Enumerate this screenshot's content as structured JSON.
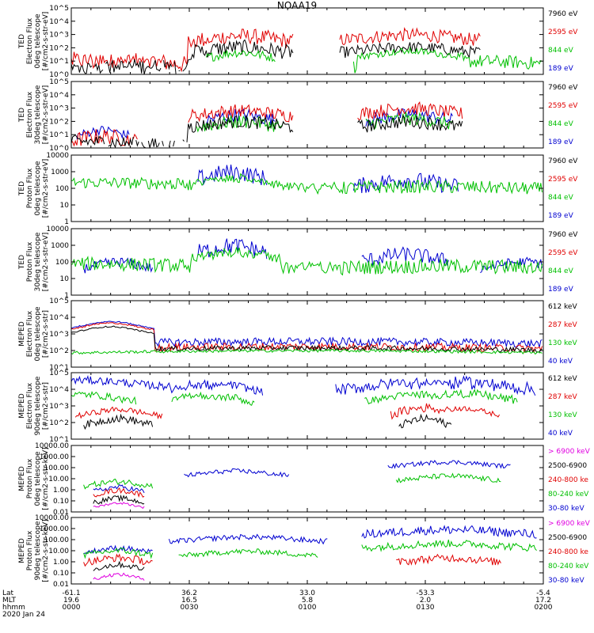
{
  "title": "NOAA19",
  "chart_data": {
    "type": "line",
    "title": "NOAA19",
    "x_axis": {
      "row_labels": [
        "Lat",
        "MLT",
        "hhmm",
        "2020 Jan 24"
      ],
      "ticks": [
        {
          "lat": "-61.1",
          "mlt": "19.6",
          "hhmm": "0000"
        },
        {
          "lat": "36.2",
          "mlt": "16.5",
          "hhmm": "0030"
        },
        {
          "lat": "33.0",
          "mlt": "5.8",
          "hhmm": "0100"
        },
        {
          "lat": "-53.3",
          "mlt": "2.0",
          "hhmm": "0130"
        },
        {
          "lat": "-5.4",
          "mlt": "17.2",
          "hhmm": "0200"
        }
      ],
      "range_minutes": [
        0,
        120
      ]
    },
    "panels": [
      {
        "ylabel": [
          "TED",
          "Electron Flux",
          "0deg telescope",
          "[#/cm2-s-str-eV]"
        ],
        "yscale": "log",
        "ylim": [
          1,
          100000
        ],
        "ytick_labels": [
          "10^0",
          "10^1",
          "10^2",
          "10^3",
          "10^4",
          "10^5"
        ],
        "legend": [
          {
            "label": "7960 eV",
            "color": "#000000"
          },
          {
            "label": "2595 eV",
            "color": "#e00000"
          },
          {
            "label": "844 eV",
            "color": "#00c000"
          },
          {
            "label": "189 eV",
            "color": "#0000d0"
          }
        ],
        "series": [
          {
            "color": "#e00000",
            "profile": [
              [
                0,
                10,
                2,
                50
              ],
              [
                18,
                8,
                2,
                40
              ],
              [
                43,
                6,
                200,
                3000
              ],
              [
                86,
                8,
                300,
                3000
              ]
            ]
          },
          {
            "color": "#000000",
            "profile": [
              [
                0,
                10,
                1,
                10
              ],
              [
                18,
                8,
                1,
                15
              ],
              [
                43,
                6,
                30,
                400
              ],
              [
                86,
                8,
                40,
                300
              ]
            ]
          },
          {
            "color": "#00c000",
            "profile": [
              [
                43,
                4,
                20,
                100
              ],
              [
                86,
                6,
                30,
                100
              ],
              [
                103,
                14,
                3,
                30
              ]
            ]
          }
        ]
      },
      {
        "ylabel": [
          "TED",
          "Electron Flux",
          "30deg telescope",
          "[#/cm2-s-str-eV]"
        ],
        "yscale": "log",
        "ylim": [
          1,
          100000
        ],
        "ytick_labels": [
          "10^0",
          "10^1",
          "10^2",
          "10^3",
          "10^4",
          "10^5"
        ],
        "legend": [
          {
            "label": "7960 eV",
            "color": "#000000"
          },
          {
            "label": "2595 eV",
            "color": "#e00000"
          },
          {
            "label": "844 eV",
            "color": "#00c000"
          },
          {
            "label": "189 eV",
            "color": "#0000d0"
          }
        ],
        "series": [
          {
            "color": "#0000d0",
            "profile": [
              [
                8,
                3,
                10,
                50
              ],
              [
                43,
                4,
                100,
                1000
              ],
              [
                86,
                5,
                100,
                1000
              ]
            ]
          },
          {
            "color": "#e00000",
            "profile": [
              [
                8,
                4,
                2,
                30
              ],
              [
                43,
                6,
                200,
                2000
              ],
              [
                86,
                6,
                300,
                3000
              ]
            ]
          },
          {
            "color": "#00c000",
            "profile": [
              [
                43,
                5,
                30,
                300
              ],
              [
                86,
                5,
                50,
                500
              ]
            ]
          },
          {
            "color": "#000000",
            "profile": [
              [
                0,
                14,
                1,
                10
              ],
              [
                43,
                6,
                30,
                300
              ],
              [
                86,
                6,
                30,
                300
              ]
            ]
          }
        ]
      },
      {
        "ylabel": [
          "TED",
          "Proton Flux",
          "0deg telescope",
          "[#/cm2-s-str-eV]"
        ],
        "yscale": "log",
        "ylim": [
          1,
          10000
        ],
        "ytick_labels": [
          "1",
          "10",
          "100",
          "1000",
          "10000"
        ],
        "legend": [
          {
            "label": "7960 eV",
            "color": "#000000"
          },
          {
            "label": "2595 eV",
            "color": "#e00000"
          },
          {
            "label": "844 eV",
            "color": "#00c000"
          },
          {
            "label": "189 eV",
            "color": "#0000d0"
          }
        ],
        "series": [
          {
            "color": "#0000d0",
            "profile": [
              [
                41,
                4,
                300,
                3000
              ],
              [
                85,
                6,
                100,
                1000
              ]
            ]
          },
          {
            "color": "#00c000",
            "profile": [
              [
                0,
                30,
                100,
                500
              ],
              [
                42,
                5,
                200,
                800
              ],
              [
                53,
                6,
                5,
                20
              ],
              [
                90,
                30,
                50,
                300
              ]
            ]
          }
        ]
      },
      {
        "ylabel": [
          "TED",
          "Proton Flux",
          "30deg telescope",
          "[#/cm2-s-str-eV]"
        ],
        "yscale": "log",
        "ylim": [
          1,
          10000
        ],
        "ytick_labels": [
          "1",
          "10",
          "100",
          "1000",
          "10000"
        ],
        "legend": [
          {
            "label": "7960 eV",
            "color": "#000000"
          },
          {
            "label": "2595 eV",
            "color": "#e00000"
          },
          {
            "label": "844 eV",
            "color": "#00c000"
          },
          {
            "label": "189 eV",
            "color": "#0000d0"
          }
        ],
        "series": [
          {
            "color": "#0000d0",
            "profile": [
              [
                12,
                4,
                50,
                200
              ],
              [
                41,
                4,
                300,
                3000
              ],
              [
                85,
                5,
                100,
                800
              ],
              [
                115,
                5,
                50,
                200
              ]
            ]
          },
          {
            "color": "#00c000",
            "profile": [
              [
                0,
                30,
                30,
                200
              ],
              [
                42,
                5,
                200,
                800
              ],
              [
                95,
                30,
                20,
                150
              ]
            ]
          }
        ]
      },
      {
        "ylabel": [
          "MEPED",
          "Electron Flux",
          "0deg telescope",
          "[#/cm2-s-str]"
        ],
        "yscale": "log",
        "ylim": [
          10,
          100000
        ],
        "ytick_labels": [
          "10^1",
          "10^2",
          "10^3",
          "10^4",
          "10^5"
        ],
        "legend": [
          {
            "label": "612 keV",
            "color": "#000000"
          },
          {
            "label": "287 keV",
            "color": "#e00000"
          },
          {
            "label": "130 keV",
            "color": "#00c000"
          },
          {
            "label": "40 keV",
            "color": "#0000d0"
          }
        ],
        "series": [
          {
            "color": "#0000d0",
            "profile": [
              [
                10,
                5,
                5000,
                6000
              ],
              [
                60,
                60,
                200,
                600
              ]
            ]
          },
          {
            "color": "#e00000",
            "profile": [
              [
                10,
                5,
                4000,
                5000
              ],
              [
                60,
                60,
                100,
                300
              ]
            ]
          },
          {
            "color": "#000000",
            "profile": [
              [
                10,
                5,
                2500,
                3000
              ],
              [
                60,
                60,
                100,
                200
              ]
            ]
          },
          {
            "color": "#00c000",
            "profile": [
              [
                60,
                60,
                80,
                120
              ]
            ]
          }
        ]
      },
      {
        "ylabel": [
          "MEPED",
          "Electron Flux",
          "90deg telescope",
          "[#/cm2-s-str]"
        ],
        "yscale": "log",
        "ylim": [
          10,
          100000
        ],
        "ytick_labels": [
          "10^1",
          "10^2",
          "10^3",
          "10^4",
          "10^5"
        ],
        "legend": [
          {
            "label": "612 keV",
            "color": "#000000"
          },
          {
            "label": "287 keV",
            "color": "#e00000"
          },
          {
            "label": "130 keV",
            "color": "#00c000"
          },
          {
            "label": "40 keV",
            "color": "#0000d0"
          }
        ],
        "series": [
          {
            "color": "#0000d0",
            "profile": [
              [
                3,
                10,
                20000,
                60000
              ],
              [
                32,
                4,
                10000,
                40000
              ],
              [
                40,
                4,
                10000,
                30000
              ],
              [
                85,
                8,
                10000,
                50000
              ],
              [
                100,
                8,
                10000,
                60000
              ]
            ]
          },
          {
            "color": "#00c000",
            "profile": [
              [
                3,
                6,
                3000,
                8000
              ],
              [
                32,
                3,
                3000,
                8000
              ],
              [
                40,
                3,
                2000,
                6000
              ],
              [
                88,
                6,
                3000,
                8000
              ],
              [
                100,
                6,
                3000,
                10000
              ]
            ]
          },
          {
            "color": "#e00000",
            "profile": [
              [
                12,
                5,
                400,
                900
              ],
              [
                90,
                4,
                400,
                1500
              ],
              [
                100,
                4,
                500,
                1000
              ]
            ]
          },
          {
            "color": "#000000",
            "profile": [
              [
                12,
                4,
                100,
                300
              ],
              [
                90,
                3,
                100,
                300
              ]
            ]
          }
        ]
      },
      {
        "ylabel": [
          "MEPED",
          "Proton Flux",
          "0deg telescope",
          "[#/cm2-s-str-keV]"
        ],
        "yscale": "log",
        "ylim": [
          0.01,
          10000
        ],
        "ytick_labels": [
          "0.01",
          "0.10",
          "1.00",
          "10.00",
          "100.00",
          "1000.00",
          "10000.00"
        ],
        "legend": [
          {
            "label": "> 6900 keV",
            "color": "#e000e0"
          },
          {
            "label": "2500-6900",
            "color": "#000000"
          },
          {
            "label": "240-800 ke",
            "color": "#e00000"
          },
          {
            "label": "80-240 keV",
            "color": "#00c000"
          },
          {
            "label": "30-80 keV",
            "color": "#0000d0"
          }
        ],
        "series": [
          {
            "color": "#00c000",
            "profile": [
              [
                12,
                4,
                3,
                10
              ],
              [
                96,
                6,
                10,
                30
              ]
            ]
          },
          {
            "color": "#0000d0",
            "profile": [
              [
                12,
                3,
                1,
                3
              ],
              [
                42,
                6,
                30,
                80
              ],
              [
                96,
                7,
                200,
                500
              ]
            ]
          },
          {
            "color": "#e00000",
            "profile": [
              [
                12,
                3,
                0.5,
                1.5
              ]
            ]
          },
          {
            "color": "#000000",
            "profile": [
              [
                12,
                3,
                0.1,
                0.3
              ]
            ]
          },
          {
            "color": "#e000e0",
            "profile": [
              [
                12,
                3,
                0.05,
                0.08
              ]
            ]
          }
        ]
      },
      {
        "ylabel": [
          "MEPED",
          "Proton Flux",
          "90deg telescope",
          "[#/cm2-s-str-keV]"
        ],
        "yscale": "log",
        "ylim": [
          0.01,
          10000
        ],
        "ytick_labels": [
          "0.01",
          "0.10",
          "1.00",
          "10.00",
          "100.00",
          "1000.00",
          "10000.00"
        ],
        "legend": [
          {
            "label": "> 6900 keV",
            "color": "#e000e0"
          },
          {
            "label": "2500-6900",
            "color": "#000000"
          },
          {
            "label": "240-800 ke",
            "color": "#e00000"
          },
          {
            "label": "80-240 keV",
            "color": "#00c000"
          },
          {
            "label": "30-80 keV",
            "color": "#0000d0"
          }
        ],
        "series": [
          {
            "color": "#0000d0",
            "profile": [
              [
                12,
                4,
                10,
                30
              ],
              [
                45,
                9,
                100,
                300
              ],
              [
                96,
                10,
                300,
                2000
              ]
            ]
          },
          {
            "color": "#00c000",
            "profile": [
              [
                12,
                4,
                5,
                20
              ],
              [
                45,
                8,
                5,
                15
              ],
              [
                96,
                10,
                20,
                100
              ]
            ]
          },
          {
            "color": "#e00000",
            "profile": [
              [
                12,
                4,
                1,
                5
              ],
              [
                96,
                6,
                1,
                5
              ]
            ]
          },
          {
            "color": "#000000",
            "profile": [
              [
                12,
                3,
                0.3,
                1
              ]
            ]
          },
          {
            "color": "#e000e0",
            "profile": [
              [
                12,
                3,
                0.05,
                0.1
              ]
            ]
          }
        ]
      }
    ]
  }
}
